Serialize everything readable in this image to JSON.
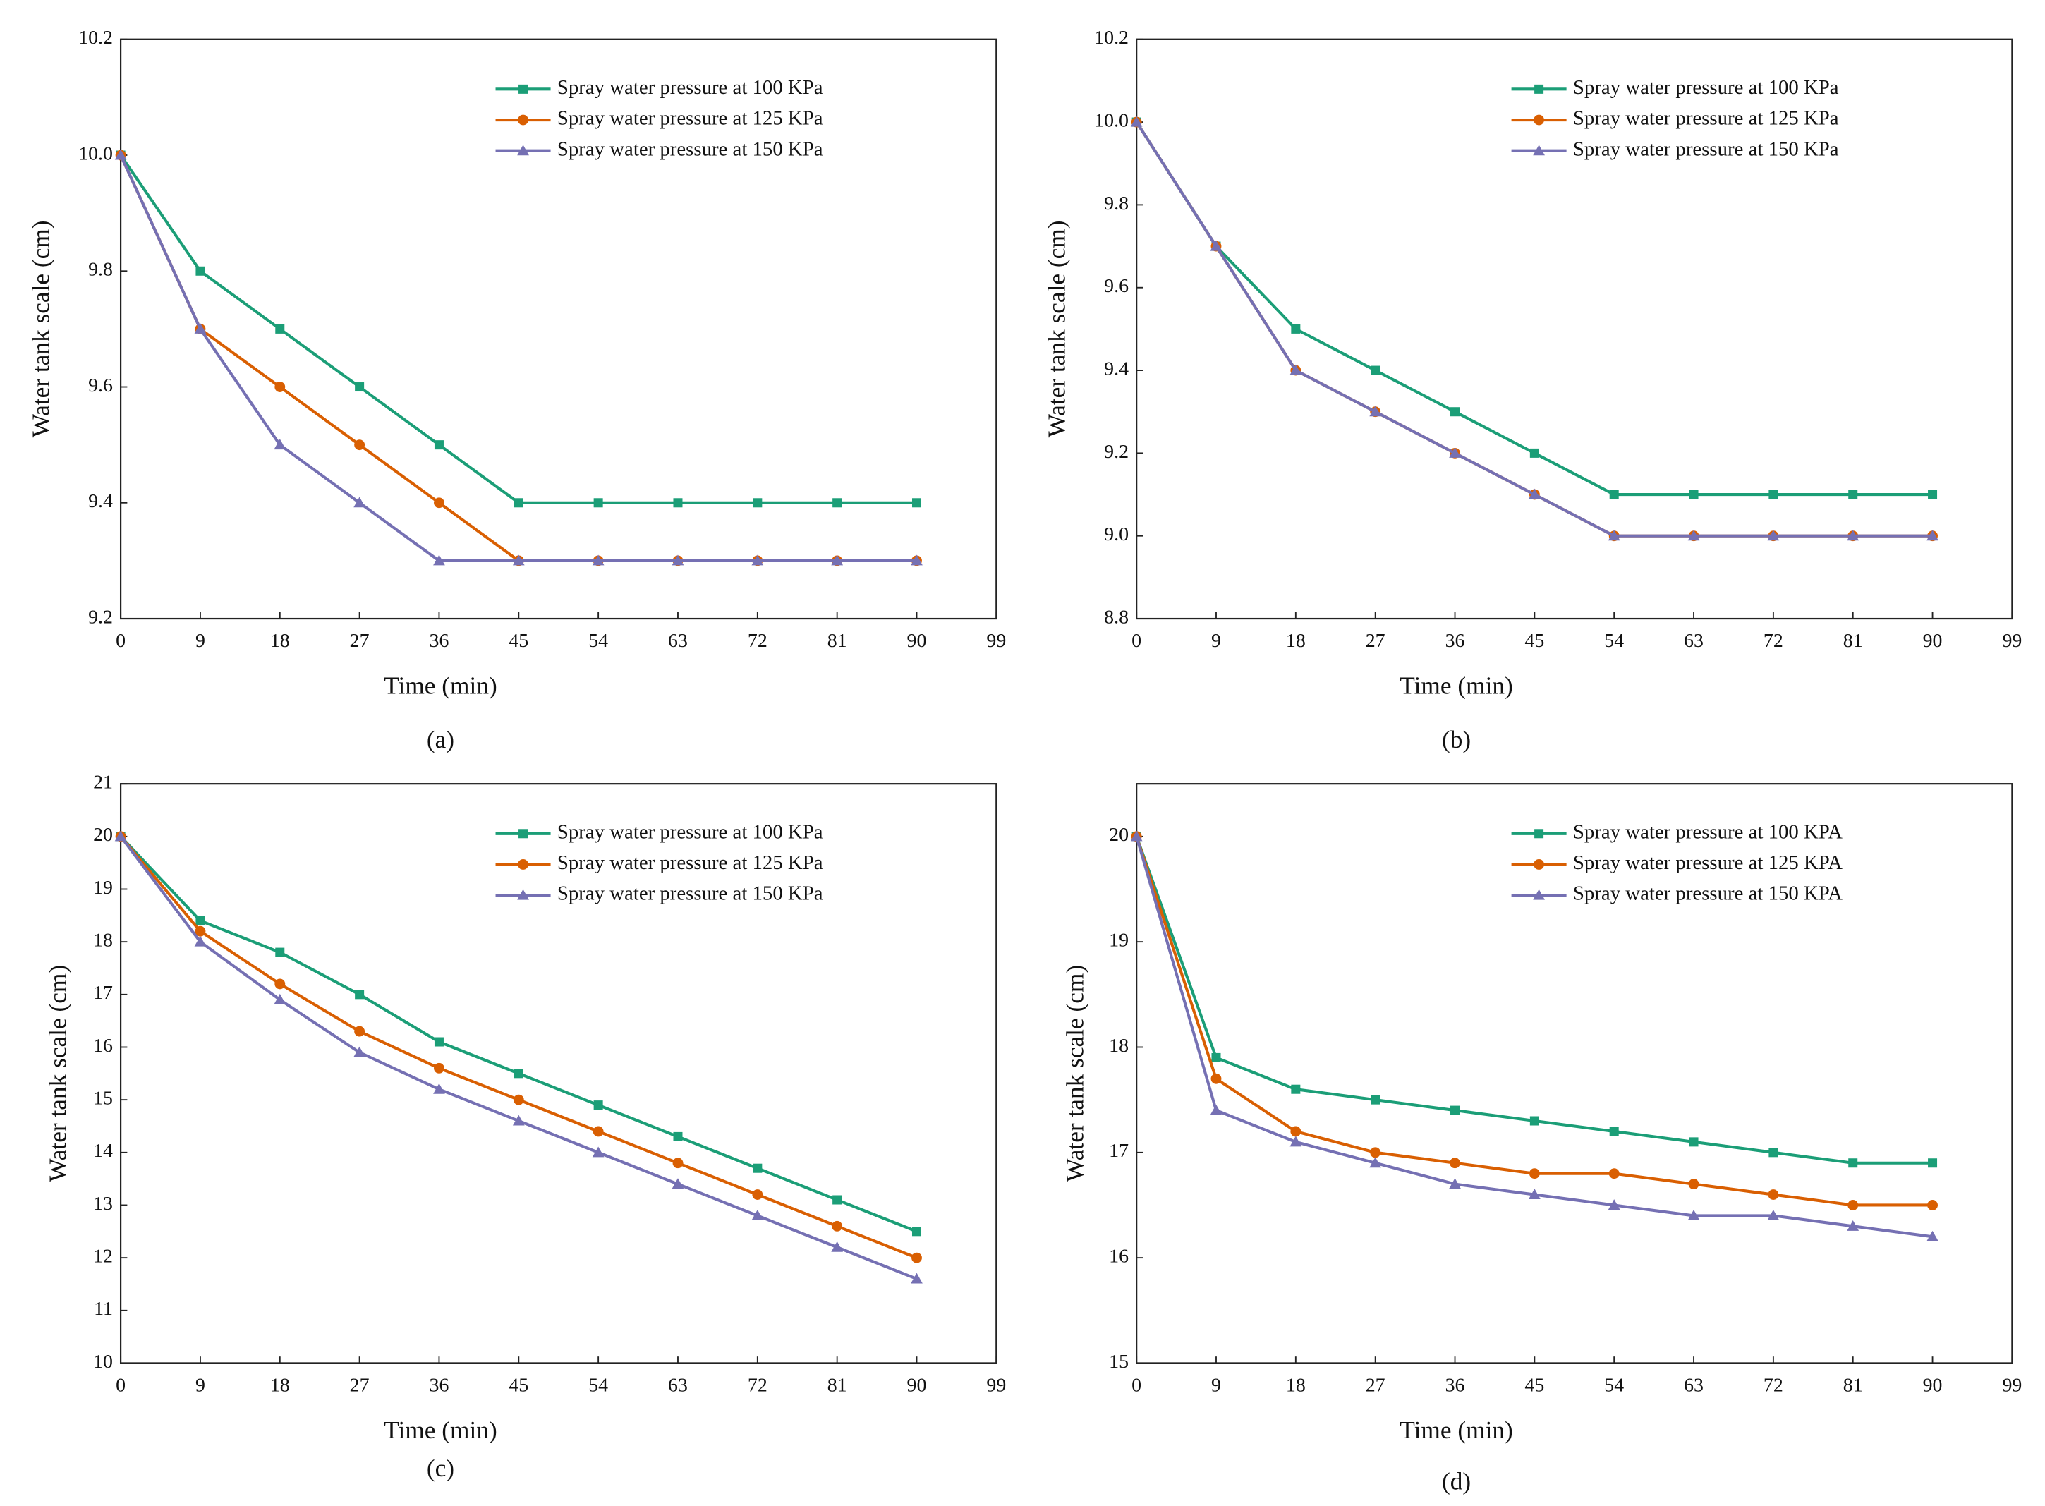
{
  "chart_data": [
    {
      "type": "line",
      "caption": "(a)",
      "xlabel": "Time (min)",
      "ylabel": "Water tank scale (cm)",
      "x": [
        0,
        9,
        18,
        27,
        36,
        45,
        54,
        63,
        72,
        81,
        90
      ],
      "xlim": [
        0,
        99
      ],
      "xticks": [
        0,
        9,
        18,
        27,
        36,
        45,
        54,
        63,
        72,
        81,
        90,
        99
      ],
      "ylim": [
        9.2,
        10.2
      ],
      "yticks": [
        9.2,
        9.4,
        9.6,
        9.8,
        {
          "value": 10,
          "label": "10.0"
        },
        10.2
      ],
      "series": [
        {
          "name": "Spray water pressure at 100 KPa",
          "color": "#1b9e77",
          "marker": "square",
          "values": [
            10,
            9.8,
            9.7,
            9.6,
            9.5,
            9.4,
            9.4,
            9.4,
            9.4,
            9.4,
            9.4
          ]
        },
        {
          "name": "Spray water pressure at 125 KPa",
          "color": "#d95f02",
          "marker": "circle",
          "values": [
            10,
            9.7,
            9.6,
            9.5,
            9.4,
            9.3,
            9.3,
            9.3,
            9.3,
            9.3,
            9.3
          ]
        },
        {
          "name": "Spray water pressure at 150 KPa",
          "color": "#7570b3",
          "marker": "triangle",
          "values": [
            10,
            9.7,
            9.5,
            9.4,
            9.3,
            9.3,
            9.3,
            9.3,
            9.3,
            9.3,
            9.3
          ]
        }
      ]
    },
    {
      "type": "line",
      "caption": "(b)",
      "xlabel": "Time (min)",
      "ylabel": "Water tank scale (cm)",
      "x": [
        0,
        9,
        18,
        27,
        36,
        45,
        54,
        63,
        72,
        81,
        90
      ],
      "xlim": [
        0,
        99
      ],
      "xticks": [
        0,
        9,
        18,
        27,
        36,
        45,
        54,
        63,
        72,
        81,
        90,
        99
      ],
      "ylim": [
        8.8,
        10.2
      ],
      "yticks": [
        8.8,
        {
          "value": 9,
          "label": "9.0"
        },
        9.2,
        9.4,
        9.6,
        9.8,
        {
          "value": 10,
          "label": "10.0"
        },
        10.2
      ],
      "series": [
        {
          "name": "Spray water pressure at 100 KPa",
          "color": "#1b9e77",
          "marker": "square",
          "values": [
            10,
            9.7,
            9.5,
            9.4,
            9.3,
            9.2,
            9.1,
            9.1,
            9.1,
            9.1,
            9.1
          ]
        },
        {
          "name": "Spray water pressure at 125 KPa",
          "color": "#d95f02",
          "marker": "circle",
          "values": [
            10,
            9.7,
            9.4,
            9.3,
            9.2,
            9.1,
            9.0,
            9.0,
            9.0,
            9.0,
            9.0
          ]
        },
        {
          "name": "Spray water pressure at 150 KPa",
          "color": "#7570b3",
          "marker": "triangle",
          "values": [
            10,
            9.7,
            9.4,
            9.3,
            9.2,
            9.1,
            9.0,
            9.0,
            9.0,
            9.0,
            9.0
          ]
        }
      ]
    },
    {
      "type": "line",
      "caption": "(c)",
      "xlabel": "Time (min)",
      "ylabel": "Water tank scale (cm)",
      "x": [
        0,
        9,
        18,
        27,
        36,
        45,
        54,
        63,
        72,
        81,
        90
      ],
      "xlim": [
        0,
        99
      ],
      "xticks": [
        0,
        9,
        18,
        27,
        36,
        45,
        54,
        63,
        72,
        81,
        90,
        99
      ],
      "ylim": [
        10,
        21
      ],
      "yticks": [
        10,
        11,
        12,
        13,
        14,
        15,
        16,
        17,
        18,
        19,
        20,
        21
      ],
      "series": [
        {
          "name": "Spray water pressure at 100 KPa",
          "color": "#1b9e77",
          "marker": "square",
          "values": [
            20,
            18.4,
            17.8,
            17,
            16.1,
            15.5,
            14.9,
            14.3,
            13.7,
            13.1,
            12.5
          ]
        },
        {
          "name": "Spray water pressure at 125 KPa",
          "color": "#d95f02",
          "marker": "circle",
          "values": [
            20,
            18.2,
            17.2,
            16.3,
            15.6,
            15,
            14.4,
            13.8,
            13.2,
            12.6,
            12
          ]
        },
        {
          "name": "Spray water pressure at 150 KPa",
          "color": "#7570b3",
          "marker": "triangle",
          "values": [
            20,
            18,
            16.9,
            15.9,
            15.2,
            14.6,
            14,
            13.4,
            12.8,
            12.2,
            11.6
          ]
        }
      ]
    },
    {
      "type": "line",
      "caption": "(d)",
      "xlabel": "Time (min)",
      "ylabel": "Water tank scale (cm)",
      "x": [
        0,
        9,
        18,
        27,
        36,
        45,
        54,
        63,
        72,
        81,
        90
      ],
      "xlim": [
        0,
        99
      ],
      "xticks": [
        0,
        9,
        18,
        27,
        36,
        45,
        54,
        63,
        72,
        81,
        90,
        99
      ],
      "ylim": [
        15,
        20.5
      ],
      "yticks": [
        15,
        16,
        17,
        18,
        19,
        20
      ],
      "series": [
        {
          "name": "Spray water pressure at 100 KPA",
          "color": "#1b9e77",
          "marker": "square",
          "values": [
            20,
            17.9,
            17.6,
            17.5,
            17.4,
            17.3,
            17.2,
            17.1,
            17,
            16.9,
            16.9
          ]
        },
        {
          "name": "Spray water pressure at 125 KPA",
          "color": "#d95f02",
          "marker": "circle",
          "values": [
            20,
            17.7,
            17.2,
            17.0,
            16.9,
            16.8,
            16.8,
            16.7,
            16.6,
            16.5,
            16.5
          ]
        },
        {
          "name": "Spray water pressure at 150 KPA",
          "color": "#7570b3",
          "marker": "triangle",
          "values": [
            20,
            17.4,
            17.1,
            16.9,
            16.7,
            16.6,
            16.5,
            16.4,
            16.4,
            16.3,
            16.2
          ]
        }
      ]
    }
  ]
}
